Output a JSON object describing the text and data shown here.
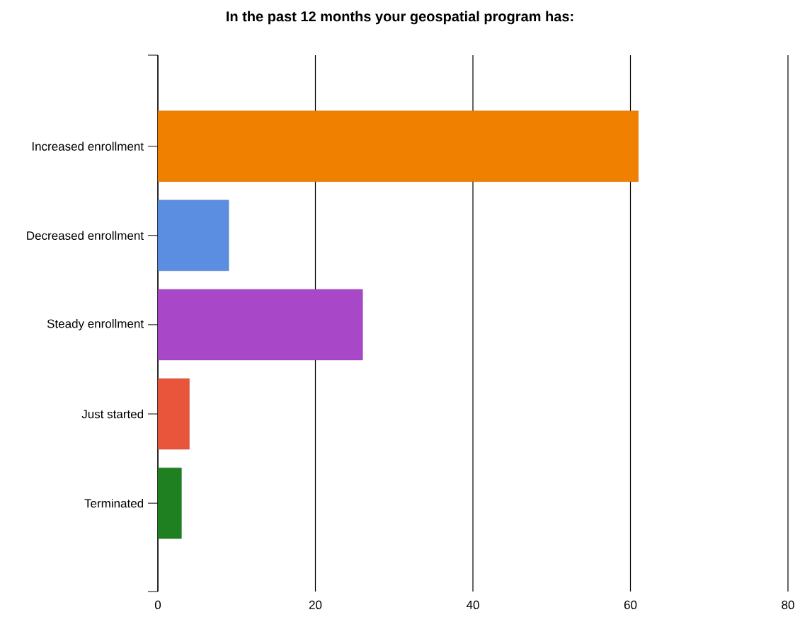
{
  "chart_data": {
    "type": "bar",
    "orientation": "horizontal",
    "title": "In the past 12 months your geospatial program has:",
    "categories": [
      "Increased enrollment",
      "Decreased enrollment",
      "Steady enrollment",
      "Just started",
      "Terminated"
    ],
    "values": [
      61,
      9,
      26,
      4,
      3
    ],
    "colors": [
      "#f08000",
      "#5b8ee0",
      "#a848c8",
      "#e8553a",
      "#1e8020"
    ],
    "xlim": [
      0,
      80
    ],
    "xticks": [
      0,
      20,
      40,
      60,
      80
    ],
    "grid": "x"
  }
}
